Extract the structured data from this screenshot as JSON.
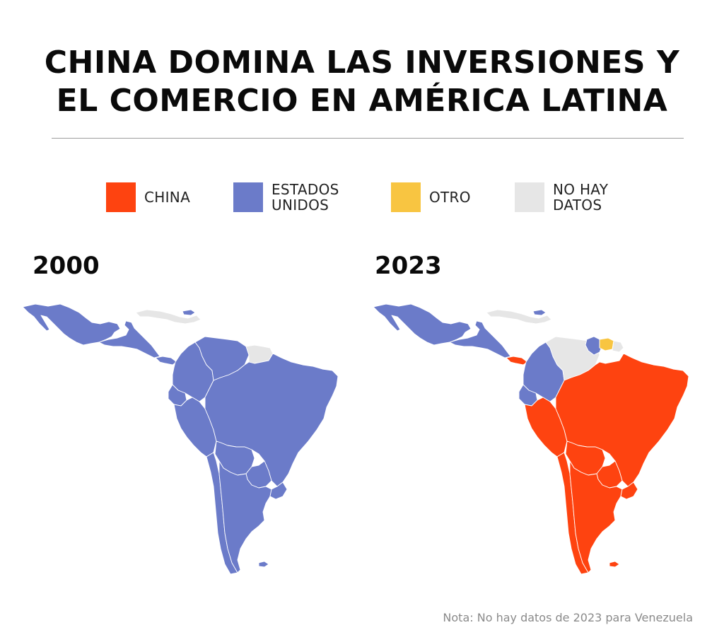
{
  "title": {
    "line1": "CHINA DOMINA LAS INVERSIONES Y",
    "line2": "EL COMERCIO EN AMÉRICA LATINA"
  },
  "legend": [
    {
      "key": "china",
      "label": "CHINA",
      "color": "#fe4310"
    },
    {
      "key": "usa",
      "label": "ESTADOS\nUNIDOS",
      "color": "#6b7bc9"
    },
    {
      "key": "otro",
      "label": "OTRO",
      "color": "#f8c541"
    },
    {
      "key": "nodata",
      "label": "NO HAY\nDATOS",
      "color": "#e6e6e6"
    }
  ],
  "maps": [
    {
      "year": "2000",
      "regions": {
        "mexico": "usa",
        "central_america": "usa",
        "caribbean": "nodata",
        "puerto_rico": "usa",
        "panama": "usa",
        "colombia": "usa",
        "venezuela": "usa",
        "guianas": "nodata",
        "ecuador": "usa",
        "peru": "usa",
        "brazil": "usa",
        "bolivia": "usa",
        "paraguay": "usa",
        "chile": "usa",
        "argentina": "usa",
        "uruguay": "usa",
        "falklands": "usa"
      }
    },
    {
      "year": "2023",
      "regions": {
        "mexico": "usa",
        "central_america": "usa",
        "caribbean": "nodata",
        "puerto_rico": "usa",
        "panama": "china",
        "colombia": "usa",
        "venezuela": "nodata",
        "guyana": "usa",
        "suriname": "otro",
        "french_guiana": "nodata",
        "ecuador": "usa",
        "peru": "china",
        "brazil": "china",
        "bolivia": "china",
        "paraguay": "china",
        "chile": "china",
        "argentina": "china",
        "uruguay": "china",
        "falklands": "china"
      }
    }
  ],
  "note": "Nota: No hay datos de 2023 para Venezuela"
}
